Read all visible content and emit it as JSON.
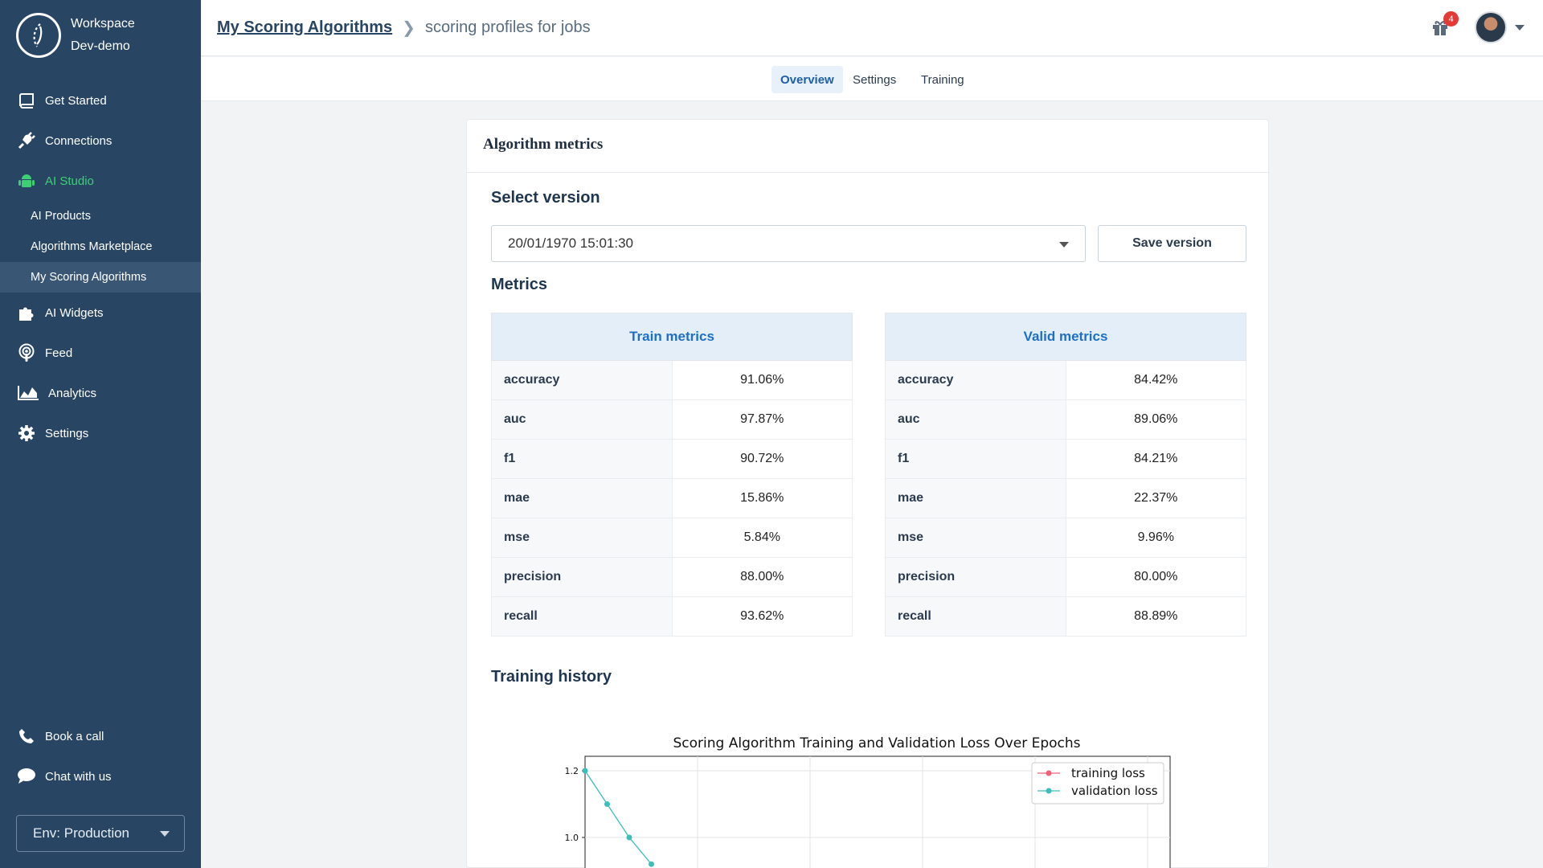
{
  "workspace": {
    "line1": "Workspace",
    "line2": "Dev-demo"
  },
  "nav": {
    "get_started": "Get Started",
    "connections": "Connections",
    "ai_studio": "AI Studio",
    "ai_products": "AI Products",
    "algorithms_marketplace": "Algorithms Marketplace",
    "my_scoring_algorithms": "My Scoring Algorithms",
    "ai_widgets": "AI Widgets",
    "feed": "Feed",
    "analytics": "Analytics",
    "settings": "Settings",
    "book_call": "Book a call",
    "chat": "Chat with us",
    "env": "Env: Production"
  },
  "header": {
    "crumb_link": "My Scoring Algorithms",
    "crumb_current": "scoring profiles for jobs",
    "notifications": "4"
  },
  "tabs": {
    "overview": "Overview",
    "settings": "Settings",
    "training": "Training"
  },
  "card": {
    "title": "Algorithm metrics",
    "select_version": "Select version",
    "version_value": "20/01/1970 15:01:30",
    "save_version": "Save version",
    "metrics": "Metrics",
    "training_history": "Training history"
  },
  "train_metrics": {
    "title": "Train metrics",
    "rows": [
      {
        "k": "accuracy",
        "v": "91.06%"
      },
      {
        "k": "auc",
        "v": "97.87%"
      },
      {
        "k": "f1",
        "v": "90.72%"
      },
      {
        "k": "mae",
        "v": "15.86%"
      },
      {
        "k": "mse",
        "v": "5.84%"
      },
      {
        "k": "precision",
        "v": "88.00%"
      },
      {
        "k": "recall",
        "v": "93.62%"
      }
    ]
  },
  "valid_metrics": {
    "title": "Valid metrics",
    "rows": [
      {
        "k": "accuracy",
        "v": "84.42%"
      },
      {
        "k": "auc",
        "v": "89.06%"
      },
      {
        "k": "f1",
        "v": "84.21%"
      },
      {
        "k": "mae",
        "v": "22.37%"
      },
      {
        "k": "mse",
        "v": "9.96%"
      },
      {
        "k": "precision",
        "v": "80.00%"
      },
      {
        "k": "recall",
        "v": "88.89%"
      }
    ]
  },
  "colors": {
    "sidebar": "#284563",
    "accent": "#3ecf76",
    "link": "#1d6fc4",
    "training_line": "#f0607a",
    "validation_line": "#3cbfb8"
  },
  "chart_data": {
    "type": "line",
    "title": "Scoring Algorithm Training and Validation Loss Over Epochs",
    "xlabel": "",
    "ylabel": "",
    "y_ticks": [
      "1.2",
      "1.0"
    ],
    "ylim": [
      0.9,
      1.25
    ],
    "grid": true,
    "legend": "top-right",
    "series": [
      {
        "name": "training loss",
        "x": [],
        "y": []
      },
      {
        "name": "validation loss",
        "x": [
          0,
          1,
          2,
          3
        ],
        "y": [
          1.2,
          1.1,
          1.0,
          0.92
        ]
      }
    ]
  }
}
